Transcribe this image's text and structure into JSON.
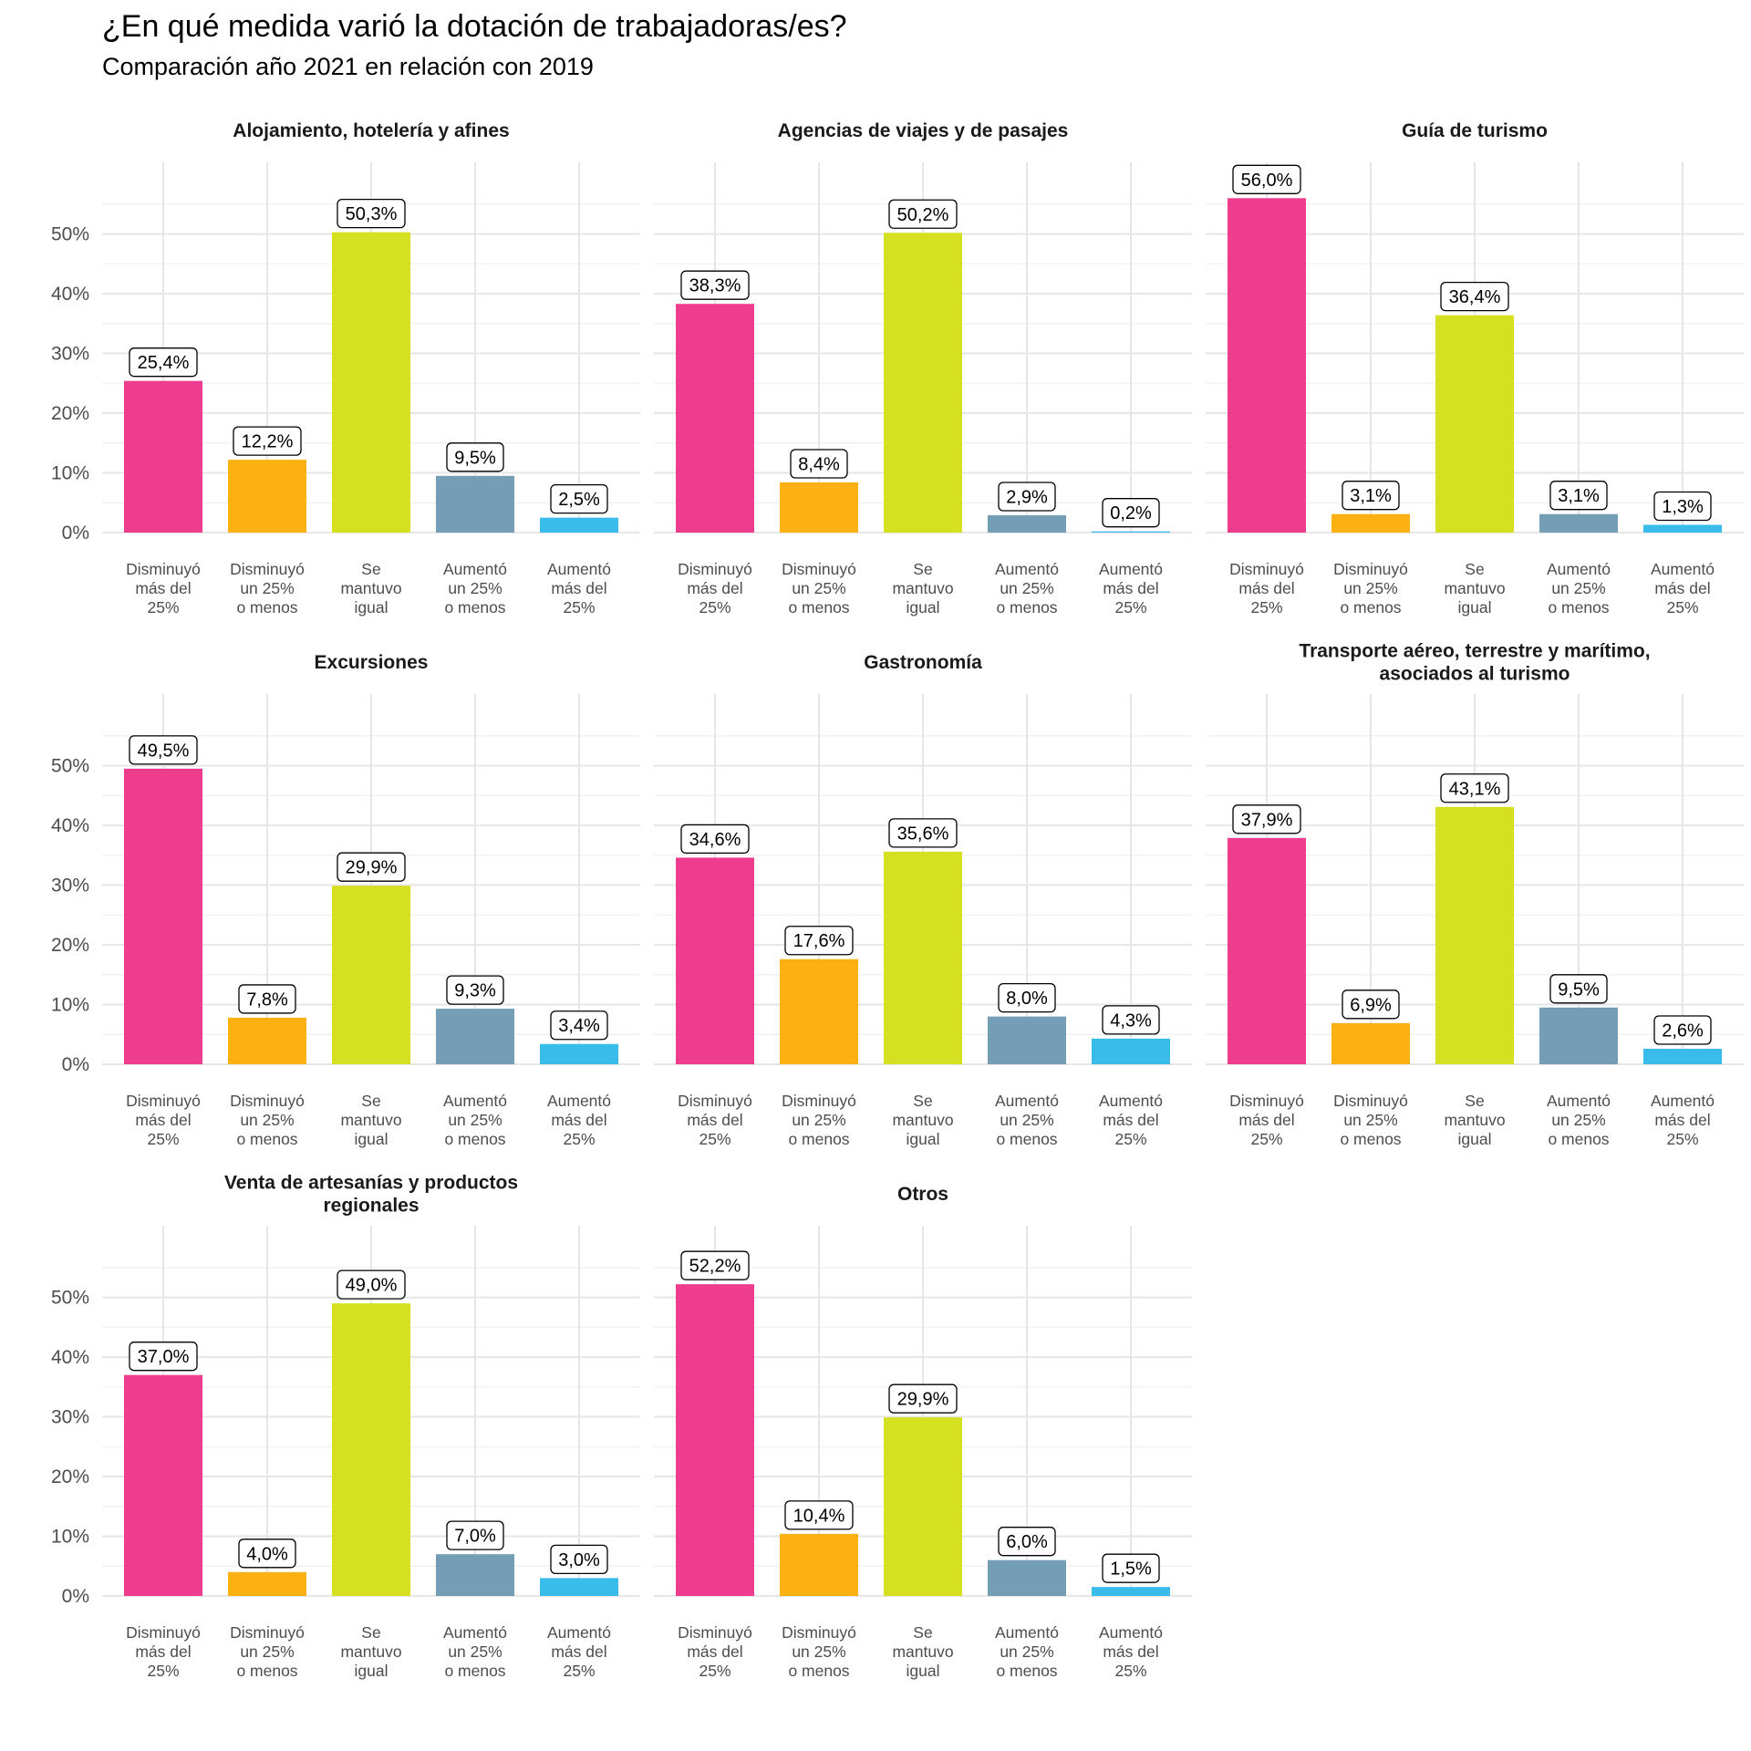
{
  "title": "¿En qué medida varió la dotación de trabajadoras/es?",
  "subtitle": "Comparación año 2021 en relación con 2019",
  "chart_data": {
    "type": "bar",
    "layout": "facets-3-columns",
    "grid": true,
    "ylim": [
      0,
      62
    ],
    "yticks": [
      0,
      10,
      20,
      30,
      40,
      50
    ],
    "ytick_labels": [
      "0%",
      "10%",
      "20%",
      "30%",
      "40%",
      "50%"
    ],
    "categories": [
      [
        "Disminuyó",
        "más del",
        "25%"
      ],
      [
        "Disminuyó",
        "un 25%",
        "o menos"
      ],
      [
        "Se",
        "mantuvo",
        "igual"
      ],
      [
        "Aumentó",
        "un 25%",
        "o menos"
      ],
      [
        "Aumentó",
        "más del",
        "25%"
      ]
    ],
    "colors": [
      "#ee3d8f",
      "#fbb111",
      "#d4e020",
      "#739eb6",
      "#3abcea"
    ],
    "facets": [
      {
        "title": [
          "Alojamiento, hotelería y afines"
        ],
        "values": [
          25.4,
          12.2,
          50.3,
          9.5,
          2.5
        ],
        "labels": [
          "25,4%",
          "12,2%",
          "50,3%",
          "9,5%",
          "2,5%"
        ]
      },
      {
        "title": [
          "Agencias de viajes y de pasajes"
        ],
        "values": [
          38.3,
          8.4,
          50.2,
          2.9,
          0.2
        ],
        "labels": [
          "38,3%",
          "8,4%",
          "50,2%",
          "2,9%",
          "0,2%"
        ]
      },
      {
        "title": [
          "Guía de turismo"
        ],
        "values": [
          56.0,
          3.1,
          36.4,
          3.1,
          1.3
        ],
        "labels": [
          "56,0%",
          "3,1%",
          "36,4%",
          "3,1%",
          "1,3%"
        ]
      },
      {
        "title": [
          "Excursiones"
        ],
        "values": [
          49.5,
          7.8,
          29.9,
          9.3,
          3.4
        ],
        "labels": [
          "49,5%",
          "7,8%",
          "29,9%",
          "9,3%",
          "3,4%"
        ]
      },
      {
        "title": [
          "Gastronomía"
        ],
        "values": [
          34.6,
          17.6,
          35.6,
          8.0,
          4.3
        ],
        "labels": [
          "34,6%",
          "17,6%",
          "35,6%",
          "8,0%",
          "4,3%"
        ]
      },
      {
        "title": [
          "Transporte aéreo, terrestre y marítimo,",
          "asociados al turismo"
        ],
        "values": [
          37.9,
          6.9,
          43.1,
          9.5,
          2.6
        ],
        "labels": [
          "37,9%",
          "6,9%",
          "43,1%",
          "9,5%",
          "2,6%"
        ]
      },
      {
        "title": [
          "Venta de artesanías y productos",
          "regionales"
        ],
        "values": [
          37.0,
          4.0,
          49.0,
          7.0,
          3.0
        ],
        "labels": [
          "37,0%",
          "4,0%",
          "49,0%",
          "7,0%",
          "3,0%"
        ]
      },
      {
        "title": [
          "Otros"
        ],
        "values": [
          52.2,
          10.4,
          29.9,
          6.0,
          1.5
        ],
        "labels": [
          "52,2%",
          "10,4%",
          "29,9%",
          "6,0%",
          "1,5%"
        ]
      }
    ]
  }
}
